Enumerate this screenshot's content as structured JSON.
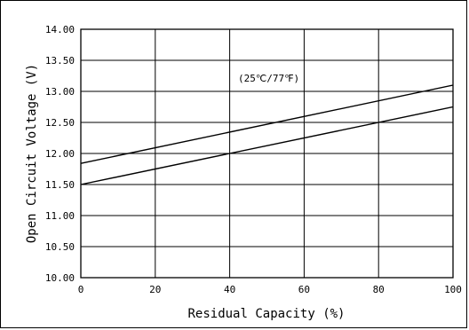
{
  "chart_data": {
    "type": "line",
    "title": "",
    "xlabel": "Residual Capacity (%)",
    "ylabel": "Open Circuit Voltage (V)",
    "annotation": "(25℃/77℉)",
    "xlim": [
      0,
      100
    ],
    "ylim": [
      10.0,
      14.0
    ],
    "x_ticks": [
      "0",
      "20",
      "40",
      "60",
      "80",
      "100"
    ],
    "y_ticks": [
      "10.00",
      "10.50",
      "11.00",
      "11.50",
      "12.00",
      "12.50",
      "13.00",
      "13.50",
      "14.00"
    ],
    "grid": true,
    "legend": "none",
    "colors": {
      "line": "#000000",
      "grid": "#000000",
      "background": "#ffffff"
    },
    "series": [
      {
        "x": [
          0,
          100
        ],
        "y": [
          11.84,
          13.1
        ]
      },
      {
        "x": [
          0,
          100
        ],
        "y": [
          11.5,
          12.75
        ]
      }
    ]
  }
}
